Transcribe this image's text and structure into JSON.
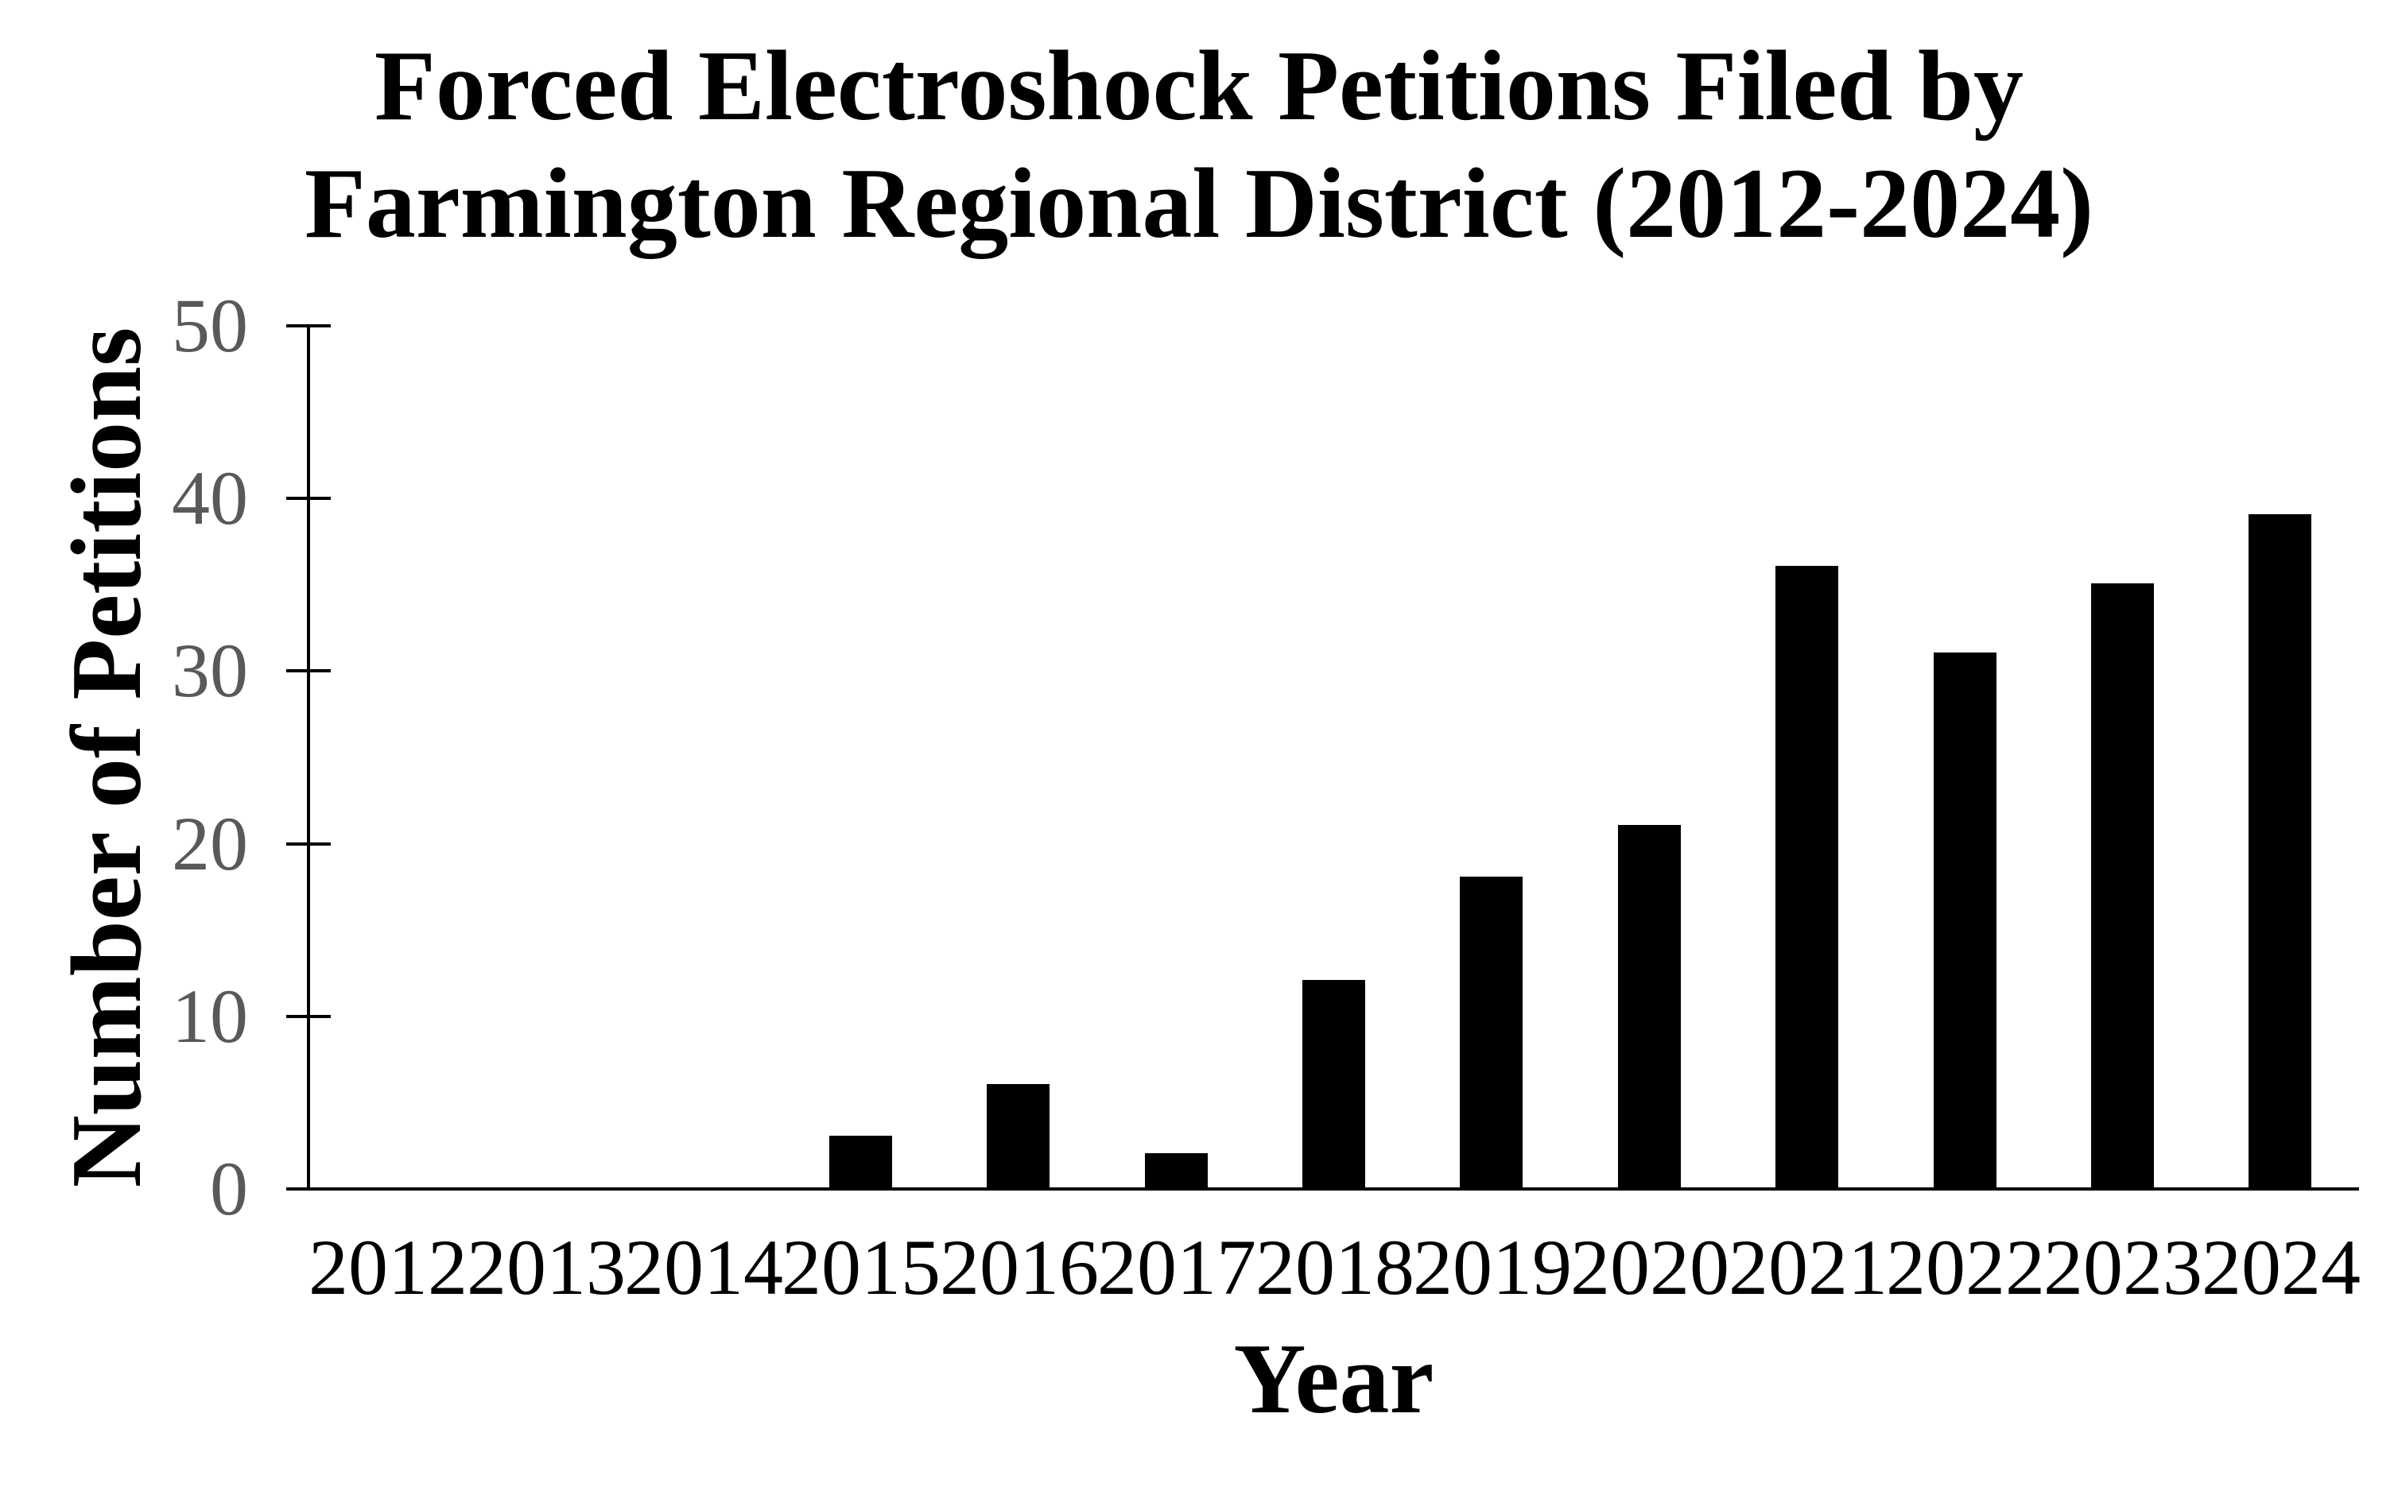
{
  "chart_data": {
    "type": "bar",
    "title": "Forced Electroshock Petitions Filed by Farmington Regional District (2012-2024)",
    "title_lines": [
      "Forced Electroshock Petitions Filed by",
      "Farmington Regional District (2012-2024)"
    ],
    "xlabel": "Year",
    "ylabel": "Number of Petitions",
    "categories": [
      "2012",
      "2013",
      "2014",
      "2015",
      "2016",
      "2017",
      "2018",
      "2019",
      "2020",
      "2021",
      "2022",
      "2023",
      "2024"
    ],
    "values": [
      0,
      0,
      0,
      3,
      6,
      2,
      12,
      18,
      21,
      36,
      31,
      35,
      39
    ],
    "ylim": [
      0,
      50
    ],
    "yticks": [
      0,
      10,
      20,
      30,
      40,
      50
    ],
    "grid": false,
    "legend": false,
    "bar_color": "#000000",
    "axis_color": "#000000",
    "ytick_label_color": "#595959",
    "xtick_label_color": "#000000",
    "title_color": "#000000",
    "background_color": "#ffffff"
  }
}
